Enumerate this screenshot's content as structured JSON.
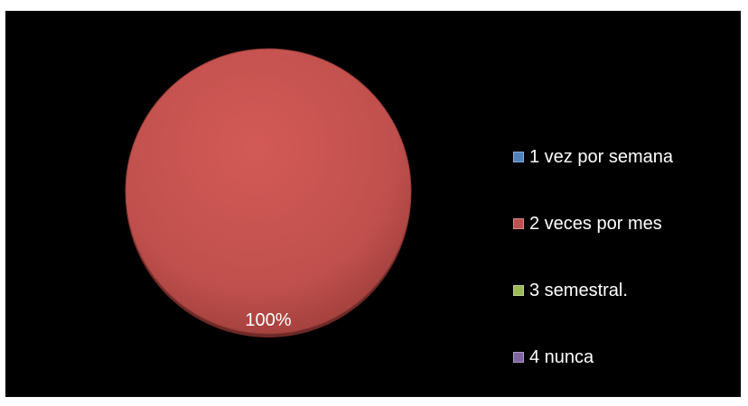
{
  "chart_data": {
    "type": "pie",
    "title": "",
    "categories": [
      "1 vez por semana",
      "2 veces por mes",
      "3 semestral.",
      "4 nunca"
    ],
    "values": [
      0,
      100,
      0,
      0
    ],
    "data_labels": [
      "",
      "100%",
      "",
      ""
    ],
    "colors": [
      "#4F81BD",
      "#C0504D",
      "#9BBB59",
      "#8064A2"
    ],
    "legend_position": "right",
    "background": "#000000"
  }
}
